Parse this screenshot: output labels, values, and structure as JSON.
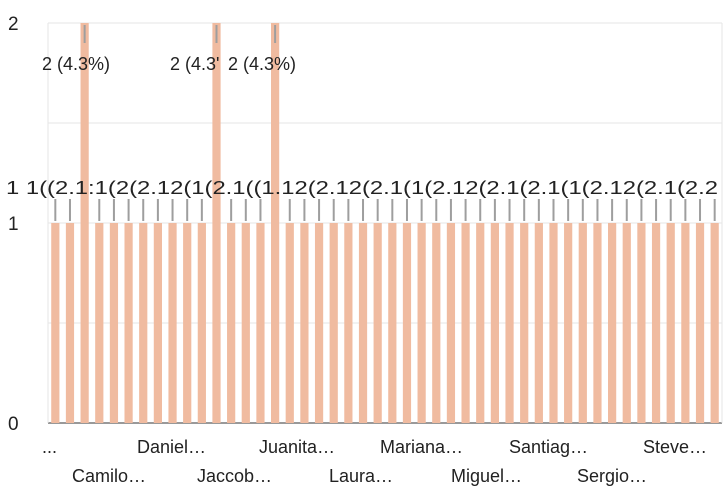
{
  "chart_data": {
    "type": "bar",
    "ylim": [
      0,
      2
    ],
    "y_ticks": [
      "0",
      "1",
      "2"
    ],
    "bar_color": "#f0bba0",
    "leader_color": "#9e9e9e",
    "grid": true,
    "n_bars": 46,
    "values": [
      1,
      1,
      2,
      1,
      1,
      1,
      1,
      1,
      1,
      1,
      1,
      2,
      1,
      1,
      1,
      2,
      1,
      1,
      1,
      1,
      1,
      1,
      1,
      1,
      1,
      1,
      1,
      1,
      1,
      1,
      1,
      1,
      1,
      1,
      1,
      1,
      1,
      1,
      1,
      1,
      1,
      1,
      1,
      1,
      1,
      1
    ],
    "visible_x_labels": [
      "...",
      "Camilo…",
      "Daniel…",
      "Jaccob…",
      "Juanita…",
      "Laura…",
      "Mariana…",
      "Miguel…",
      "Santiag…",
      "Sergio…",
      "Steve…"
    ],
    "data_labels_top": [
      "2 (4.3%)",
      "2 (4.3'",
      "2 (4.3%)"
    ],
    "data_labels_row": "1 1((2.1:1(2(2.12(1(2.1((1.12(2.12(2.1(1(2.12(2.1(2.1(1(2.12(2.1(2.2"
  }
}
